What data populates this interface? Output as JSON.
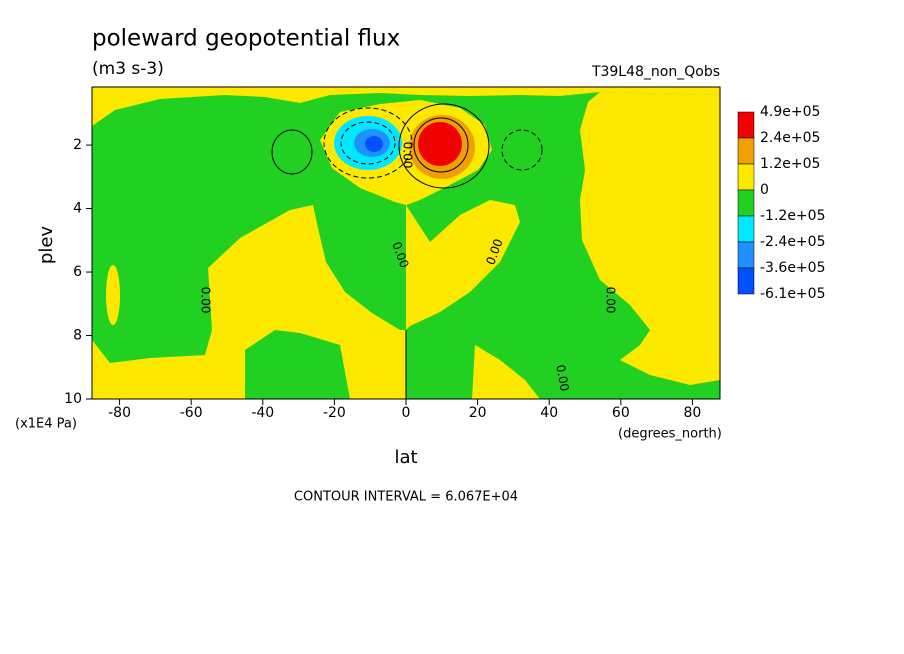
{
  "chart_data": {
    "type": "contour",
    "title": "poleward geopotential flux",
    "subtitle": "(m3 s-3)",
    "run_label": "T39L48_non_Qobs",
    "x_label": "lat",
    "y_label": "plev",
    "x_units": "(degrees_north)",
    "y_units": "(x1E4 Pa)",
    "footer": "CONTOUR INTERVAL = 6.067E+04",
    "xlim": [
      -87.7,
      87.7
    ],
    "ylim": [
      0.17,
      10
    ],
    "y_inverted": true,
    "xticks": [
      -80,
      -60,
      -40,
      -20,
      0,
      20,
      40,
      60,
      80
    ],
    "yticks": [
      2,
      4,
      6,
      8,
      10
    ],
    "colorbar": {
      "levels": [
        {
          "value": 490000,
          "label": "4.9e+05"
        },
        {
          "value": 240000,
          "label": "2.4e+05"
        },
        {
          "value": 120000,
          "label": "1.2e+05"
        },
        0,
        {
          "value": -120000,
          "label": "-1.2e+05"
        },
        {
          "value": -240000,
          "label": "-2.4e+05"
        },
        {
          "value": -360000,
          "label": "-3.6e+05"
        },
        {
          "value": -610000,
          "label": "-6.1e+05"
        }
      ],
      "colors": [
        "#f00000",
        "#f0a000",
        "#fde800",
        "#22d022",
        "#00e8ff",
        "#2090ff",
        "#0050ff"
      ]
    },
    "contour_labels": [
      "0.00",
      "0.00",
      "0.00",
      "0.00",
      "0.00",
      "0.00"
    ]
  }
}
